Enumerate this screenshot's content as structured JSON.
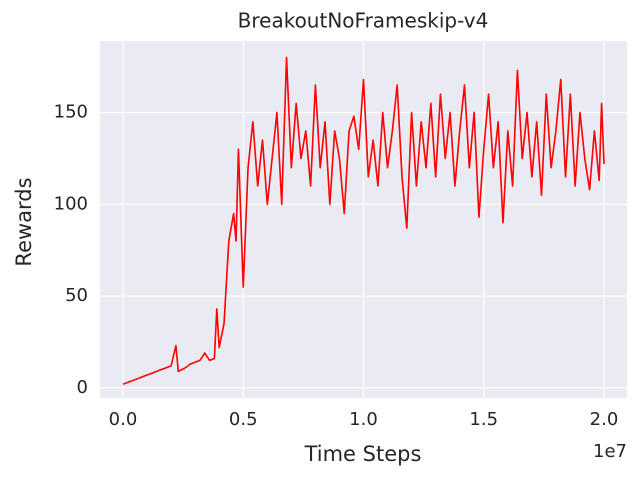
{
  "chart_data": {
    "type": "line",
    "title": "BreakoutNoFrameskip-v4",
    "x_label": "Time Steps",
    "y_label": "Rewards",
    "x_offset_label": "1e7",
    "x": [
      0,
      200000,
      400000,
      600000,
      800000,
      1000000,
      1200000,
      1400000,
      1600000,
      1800000,
      2000000,
      2200000,
      2300000,
      2600000,
      2800000,
      3000000,
      3200000,
      3400000,
      3600000,
      3800000,
      3900000,
      4000000,
      4200000,
      4400000,
      4600000,
      4700000,
      4800000,
      5000000,
      5200000,
      5400000,
      5600000,
      5800000,
      6000000,
      6200000,
      6400000,
      6600000,
      6800000,
      7000000,
      7200000,
      7400000,
      7600000,
      7800000,
      8000000,
      8200000,
      8400000,
      8600000,
      8800000,
      9000000,
      9200000,
      9400000,
      9600000,
      9800000,
      10000000,
      10200000,
      10400000,
      10600000,
      10800000,
      11000000,
      11200000,
      11400000,
      11600000,
      11800000,
      12000000,
      12200000,
      12400000,
      12600000,
      12800000,
      13000000,
      13200000,
      13400000,
      13600000,
      13800000,
      14000000,
      14200000,
      14400000,
      14600000,
      14800000,
      15000000,
      15200000,
      15400000,
      15600000,
      15800000,
      16000000,
      16200000,
      16400000,
      16600000,
      16800000,
      17000000,
      17200000,
      17400000,
      17600000,
      17800000,
      18000000,
      18200000,
      18400000,
      18600000,
      18800000,
      19000000,
      19200000,
      19400000,
      19600000,
      19800000,
      19900000,
      20000000
    ],
    "series": [
      {
        "name": "Rewards",
        "color": "#ff0000",
        "values": [
          2,
          3,
          4,
          5,
          6,
          7,
          8,
          9,
          10,
          11,
          12,
          23,
          9,
          11,
          13,
          14,
          15,
          19,
          15,
          16,
          43,
          22,
          35,
          80,
          95,
          80,
          130,
          55,
          120,
          145,
          110,
          135,
          100,
          125,
          150,
          100,
          180,
          120,
          155,
          125,
          140,
          110,
          165,
          120,
          145,
          100,
          140,
          125,
          95,
          140,
          148,
          130,
          168,
          115,
          135,
          110,
          150,
          120,
          140,
          165,
          115,
          87,
          150,
          110,
          145,
          120,
          155,
          115,
          160,
          125,
          150,
          110,
          140,
          165,
          120,
          150,
          93,
          130,
          160,
          120,
          145,
          90,
          140,
          110,
          173,
          125,
          150,
          115,
          145,
          105,
          160,
          120,
          140,
          168,
          115,
          160,
          110,
          150,
          125,
          108,
          140,
          113,
          155,
          122
        ]
      }
    ],
    "xlim": [
      -956000,
      20956000
    ],
    "ylim": [
      -5.5,
      189
    ],
    "xticks": [
      {
        "value": 0,
        "label": "0.0"
      },
      {
        "value": 5000000,
        "label": "0.5"
      },
      {
        "value": 10000000,
        "label": "1.0"
      },
      {
        "value": 15000000,
        "label": "1.5"
      },
      {
        "value": 20000000,
        "label": "2.0"
      }
    ],
    "yticks": [
      0,
      50,
      100,
      150
    ],
    "grid": true
  }
}
